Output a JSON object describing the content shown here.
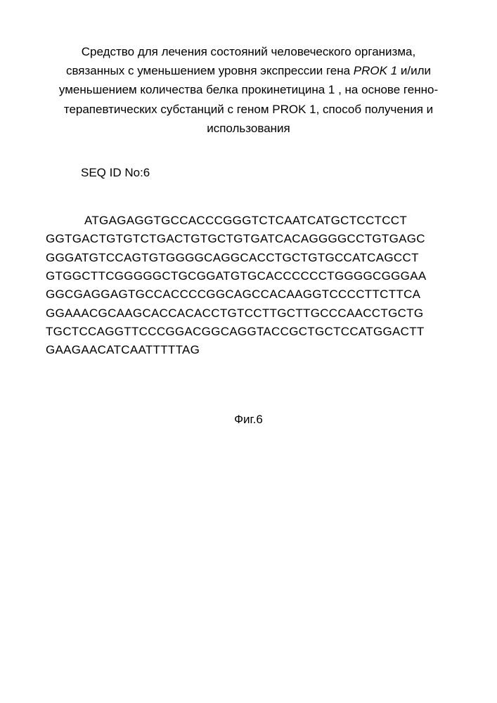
{
  "title": {
    "line1_part1": "Средство для лечения состояний человеческого организма,",
    "line2_part1": "связанных с уменьшением уровня экспрессии гена ",
    "line2_italic": "PROK 1",
    "line2_part2": " и/или",
    "line3": "уменьшением количества белка прокинетицина 1  , на основе генно-",
    "line4": "терапевтических субстанций с геном PROK 1, способ получения и",
    "line5": "использования"
  },
  "seq_id": "SEQ ID No:6",
  "sequence": {
    "line1": "ATGAGAGGTGCCACCCGGGTCTCAATCATGCTCCTCCT",
    "line2": "GGTGACTGTGTCTGACTGTGCTGTGATCACAGGGGCCTGTGAGC",
    "line3": "GGGATGTCCAGTGTGGGGCAGGCACCTGCTGTGCCATCAGCCT",
    "line4": "GTGGCTTCGGGGGCTGCGGATGTGCACCCCCCTGGGGCGGGAA",
    "line5": "GGCGAGGAGTGCCACCCCGGCAGCCACAAGGTCCCCTTCTTCA",
    "line6": "GGAAACGCAAGCACCACACCTGTCCTTGCTTGCCCAACCTGCTG",
    "line7": "TGCTCCAGGTTCCCGGACGGCAGGTACCGCTGCTCCATGGACTT",
    "line8": "GAAGAACATCAATTTTTAG"
  },
  "figure_label": "Фиг.6",
  "styling": {
    "background_color": "#ffffff",
    "text_color": "#000000",
    "font_family": "Arial, sans-serif",
    "title_fontsize": 17,
    "body_fontsize": 17,
    "title_line_height": 1.6,
    "sequence_line_height": 1.55
  }
}
